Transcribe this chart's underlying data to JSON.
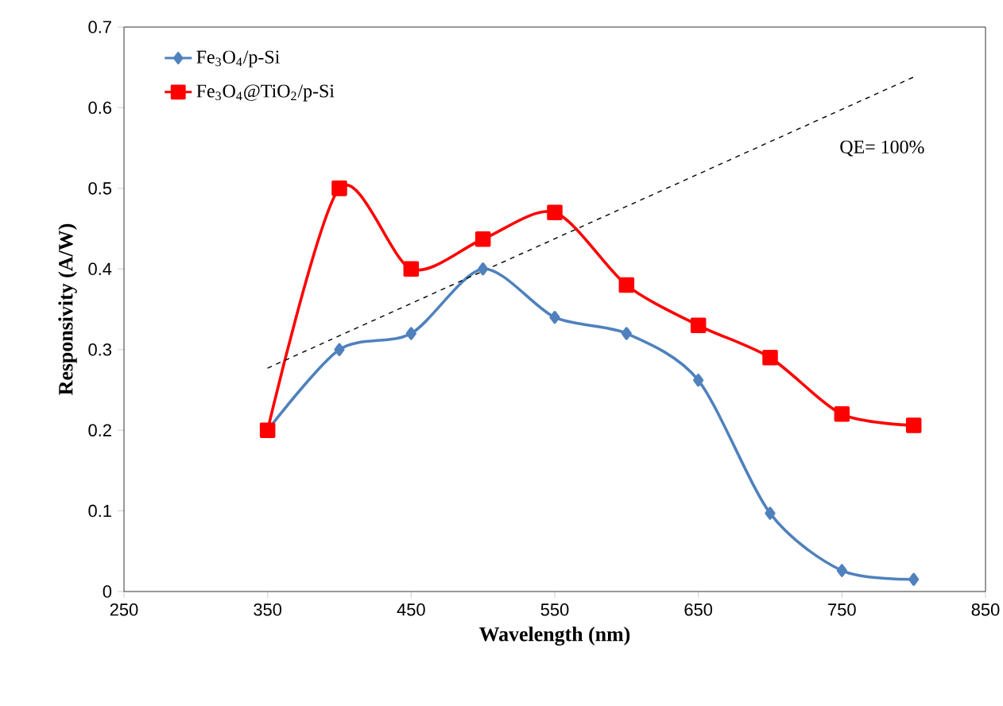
{
  "chart_data": {
    "type": "line",
    "xlabel": "Wavelength (nm)",
    "ylabel": "Responsivity (A/W)",
    "x": [
      350,
      400,
      450,
      500,
      550,
      600,
      650,
      700,
      750,
      800
    ],
    "series": [
      {
        "name": "Fe$_{3}$O$_{4}$/p-Si",
        "color": "#4f81bd",
        "marker": "diamond",
        "values": [
          0.2,
          0.3,
          0.32,
          0.4,
          0.34,
          0.32,
          0.262,
          0.097,
          0.026,
          0.015
        ]
      },
      {
        "name": "Fe$_{3}$O$_{4}$@TiO$_{2}$/p-Si",
        "color": "#ff0000",
        "marker": "square",
        "values": [
          0.2,
          0.5,
          0.4,
          0.437,
          0.47,
          0.38,
          0.33,
          0.29,
          0.22,
          0.206
        ]
      },
      {
        "color": "#000000",
        "marker": "none",
        "line_style": "dashed",
        "x": [
          350,
          800
        ],
        "values": [
          0.277,
          0.638
        ]
      }
    ],
    "annotations": [
      "QE= 100%"
    ],
    "xlim": [
      250,
      850
    ],
    "xticks": [
      250,
      350,
      450,
      550,
      650,
      750,
      850
    ],
    "ylim": [
      0,
      0.7
    ],
    "yticks": [
      0,
      0.1,
      0.2,
      0.3,
      0.4,
      0.5,
      0.6,
      0.7
    ],
    "grid": false,
    "legend": "top left"
  }
}
